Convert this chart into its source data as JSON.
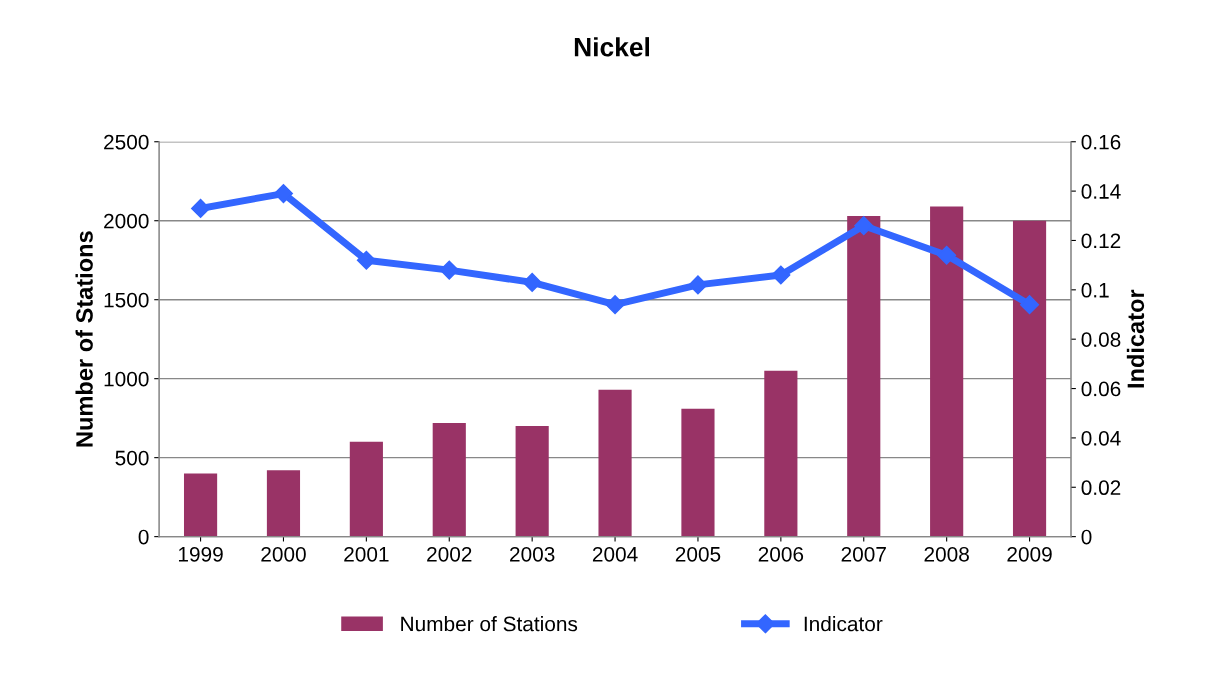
{
  "chart_data": {
    "type": "bar",
    "title": "Nickel",
    "ylabel": "Number of Stations",
    "y2label": "Indicator",
    "categories": [
      "1999",
      "2000",
      "2001",
      "2002",
      "2003",
      "2004",
      "2005",
      "2006",
      "2007",
      "2008",
      "2009"
    ],
    "series": [
      {
        "name": "Number of Stations",
        "color": "#993366",
        "values": [
          400,
          420,
          600,
          720,
          700,
          930,
          810,
          1050,
          2030,
          2090,
          2000
        ]
      },
      {
        "name": "Indicator",
        "type": "line",
        "axis": "y2",
        "color": "#3366ff",
        "marker": "diamond",
        "values": [
          0.133,
          0.139,
          0.112,
          0.108,
          0.103,
          0.094,
          0.102,
          0.106,
          0.126,
          0.114,
          0.094
        ]
      }
    ],
    "ylim": [
      0,
      2500
    ],
    "yticks": [
      0,
      500,
      1000,
      1500,
      2000,
      2500
    ],
    "y2lim": [
      0,
      0.16
    ],
    "y2ticks": [
      0,
      0.02,
      0.04,
      0.06,
      0.08,
      0.1,
      0.12,
      0.14,
      0.16
    ],
    "grid": "y",
    "legend": "bottom"
  }
}
